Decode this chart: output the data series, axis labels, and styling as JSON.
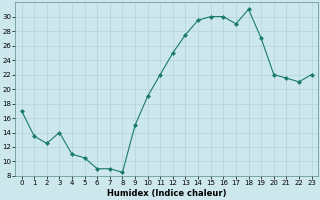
{
  "x": [
    0,
    1,
    2,
    3,
    4,
    5,
    6,
    7,
    8,
    9,
    10,
    11,
    12,
    13,
    14,
    15,
    16,
    17,
    18,
    19,
    20,
    21,
    22,
    23
  ],
  "y": [
    17,
    13.5,
    12.5,
    14,
    11,
    10.5,
    9,
    9,
    8.5,
    15,
    19,
    22,
    25,
    27.5,
    29.5,
    30,
    30,
    29,
    31,
    27,
    22,
    21.5,
    21,
    22
  ],
  "line_color": "#1a7a6e",
  "marker_color": "#1a7a6e",
  "bg_color": "#cce8ec",
  "grid_color_major": "#b0ced2",
  "grid_color_minor": "#b0ced2",
  "xlabel": "Humidex (Indice chaleur)",
  "ylim": [
    8,
    32
  ],
  "xlim": [
    -0.5,
    23.5
  ],
  "yticks": [
    8,
    10,
    12,
    14,
    16,
    18,
    20,
    22,
    24,
    26,
    28,
    30
  ],
  "xticks": [
    0,
    1,
    2,
    3,
    4,
    5,
    6,
    7,
    8,
    9,
    10,
    11,
    12,
    13,
    14,
    15,
    16,
    17,
    18,
    19,
    20,
    21,
    22,
    23
  ],
  "tick_fontsize": 5.0,
  "xlabel_fontsize": 6.0,
  "linewidth": 0.8,
  "markersize": 2.0
}
